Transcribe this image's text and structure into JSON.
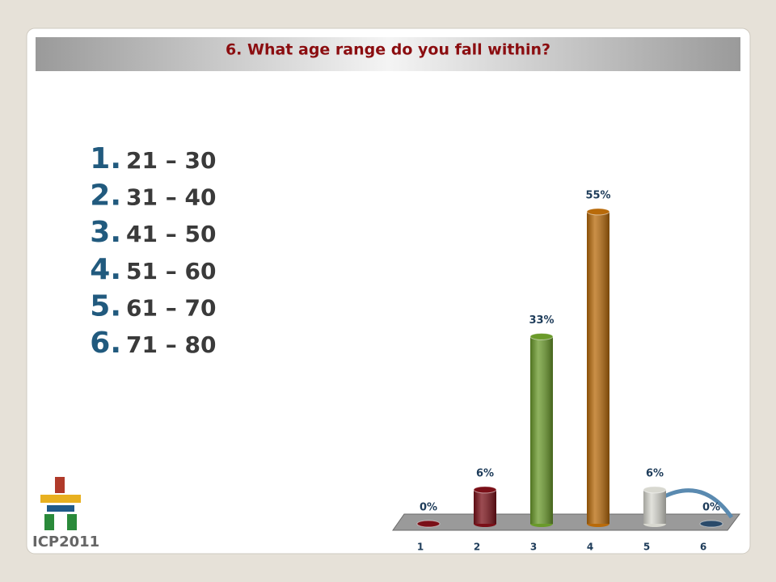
{
  "chart_data": {
    "type": "bar",
    "title": "6. What age range do you fall within?",
    "categories": [
      "1",
      "2",
      "3",
      "4",
      "5",
      "6"
    ],
    "series": [
      {
        "values": [
          0,
          6,
          33,
          55,
          6,
          0
        ],
        "value_labels": [
          "0%",
          "6%",
          "33%",
          "55%",
          "6%",
          "0%"
        ],
        "colors": [
          "#7a1018",
          "#7a1018",
          "#6a9a2a",
          "#b86a0a",
          "#d8d8d0",
          "#2a4a6a"
        ]
      }
    ]
  },
  "options": [
    {
      "number": "1.",
      "text": "21 – 30"
    },
    {
      "number": "2.",
      "text": "31 – 40"
    },
    {
      "number": "3.",
      "text": "41 – 50"
    },
    {
      "number": "4.",
      "text": "51 – 60"
    },
    {
      "number": "5.",
      "text": "61 – 70"
    },
    {
      "number": "6.",
      "text": "71 – 80"
    }
  ],
  "logo": {
    "text": "ICP2011"
  }
}
